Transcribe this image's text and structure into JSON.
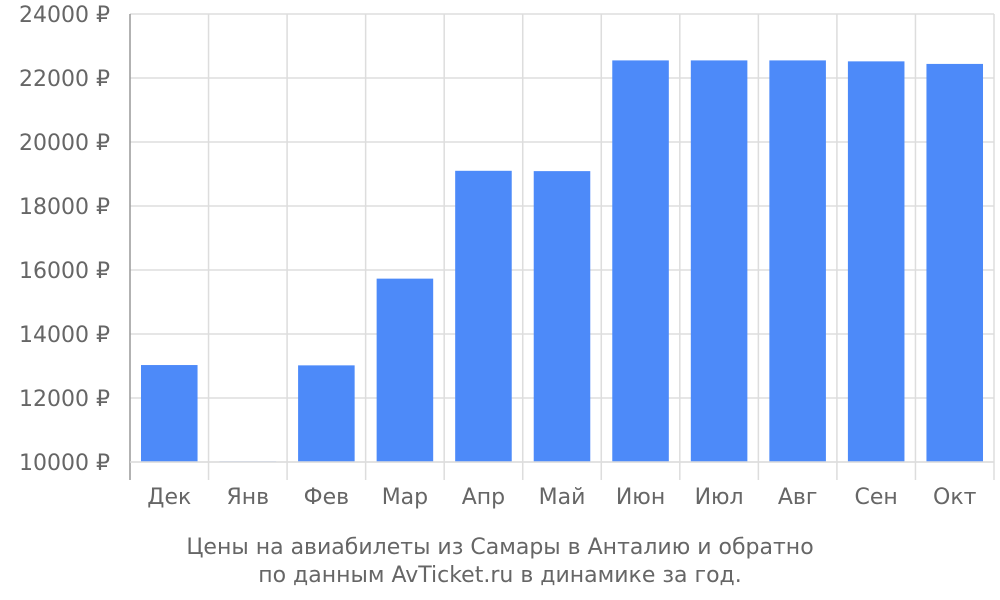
{
  "chart_data": {
    "type": "bar",
    "categories": [
      "Дек",
      "Янв",
      "Фев",
      "Мар",
      "Апр",
      "Май",
      "Июн",
      "Июл",
      "Авг",
      "Сен",
      "Окт"
    ],
    "series": [
      {
        "values": [
          13030,
          10020,
          13020,
          15730,
          19100,
          19090,
          22550,
          22550,
          22550,
          22520,
          22440
        ]
      }
    ],
    "ylim": [
      10000,
      24000
    ],
    "yticks": [
      10000,
      12000,
      14000,
      16000,
      18000,
      20000,
      22000,
      24000
    ],
    "ytick_suffix": " ₽",
    "grid": true,
    "bar_color": "#4d8af9",
    "grid_color": "#dddddd",
    "axis_color": "#999999",
    "text_color": "#666666"
  },
  "caption": {
    "line1": "Цены на авиабилеты из Самары в Анталию и обратно",
    "line2": "по данным AvTicket.ru в динамике за год."
  }
}
